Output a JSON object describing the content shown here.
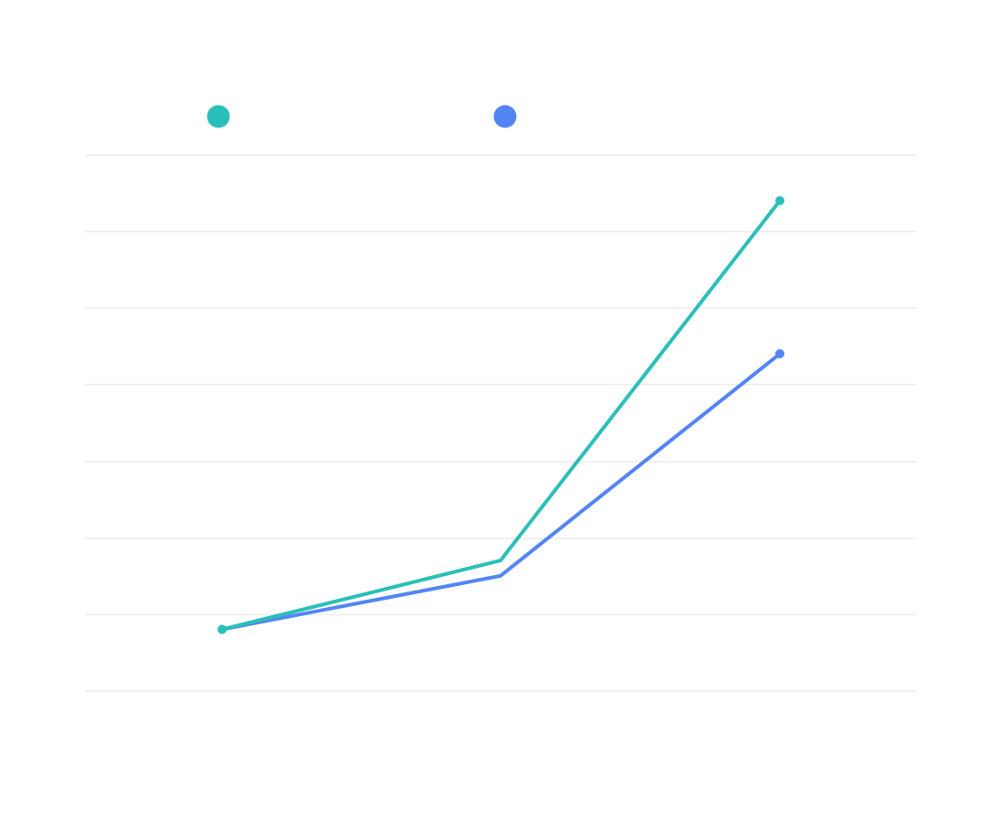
{
  "chart_data": {
    "type": "line",
    "title": "",
    "xlabel": "",
    "ylabel": "",
    "categories": [
      "",
      "",
      ""
    ],
    "ylim": [
      0,
      7
    ],
    "grid": true,
    "legend_position": "top-left",
    "series": [
      {
        "color": "#2bbfb9",
        "values": [
          0.8,
          1.7,
          6.4
        ],
        "markers": "ends"
      },
      {
        "color": "#5385f5",
        "values": [
          0.8,
          1.5,
          4.4
        ],
        "markers": "last"
      }
    ]
  }
}
